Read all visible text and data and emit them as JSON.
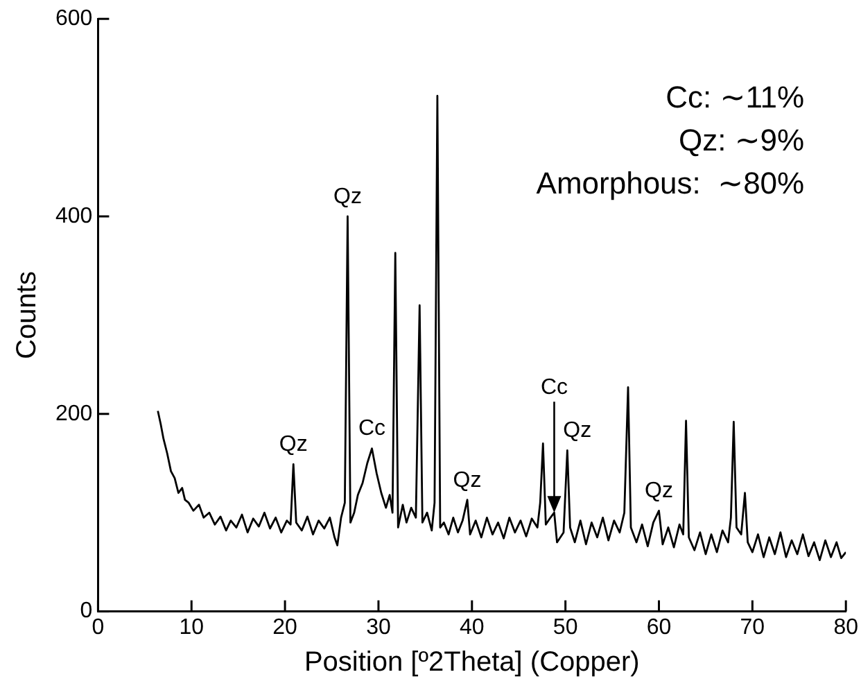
{
  "chart_data": {
    "type": "line",
    "xlabel": "Position [º2Theta] (Copper)",
    "ylabel": "Counts",
    "xlim": [
      0,
      80
    ],
    "xticks": [
      0,
      10,
      20,
      30,
      40,
      50,
      60,
      70,
      80
    ],
    "ylim": [
      0,
      600
    ],
    "yticks": [
      0,
      200,
      400,
      600
    ],
    "grid": false,
    "legend": false,
    "marker": "none",
    "line_style": "solid",
    "series": [
      {
        "color": "#000000",
        "x": [
          6.4,
          6.7,
          7.0,
          7.4,
          7.8,
          8.2,
          8.6,
          9.0,
          9.3,
          9.7,
          10.2,
          10.8,
          11.3,
          11.9,
          12.5,
          13.1,
          13.7,
          14.2,
          14.8,
          15.4,
          16.0,
          16.6,
          17.2,
          17.8,
          18.4,
          19.0,
          19.6,
          20.2,
          20.6,
          20.9,
          21.2,
          21.8,
          22.4,
          23.0,
          23.6,
          24.2,
          24.8,
          25.3,
          25.6,
          26.0,
          26.4,
          26.7,
          27.0,
          27.4,
          27.8,
          28.3,
          28.8,
          29.3,
          29.8,
          30.3,
          30.8,
          31.2,
          31.5,
          31.8,
          32.1,
          32.6,
          33.0,
          33.5,
          34.0,
          34.4,
          34.7,
          35.2,
          35.7,
          36.0,
          36.3,
          36.6,
          37.0,
          37.5,
          38.0,
          38.5,
          39.0,
          39.5,
          39.8,
          40.4,
          41.0,
          41.6,
          42.2,
          42.8,
          43.4,
          44.0,
          44.6,
          45.2,
          45.8,
          46.4,
          47.0,
          47.3,
          47.6,
          47.9,
          48.4,
          48.8,
          49.1,
          49.8,
          50.2,
          50.5,
          51.0,
          51.6,
          52.2,
          52.8,
          53.4,
          54.0,
          54.6,
          55.2,
          55.8,
          56.3,
          56.7,
          57.0,
          57.6,
          58.2,
          58.8,
          59.4,
          60.0,
          60.4,
          61.0,
          61.6,
          62.2,
          62.6,
          62.9,
          63.2,
          63.8,
          64.4,
          65.0,
          65.6,
          66.2,
          66.8,
          67.4,
          67.7,
          68.0,
          68.3,
          68.8,
          69.2,
          69.5,
          70.0,
          70.6,
          71.2,
          71.8,
          72.4,
          73.0,
          73.6,
          74.2,
          74.8,
          75.4,
          76.0,
          76.6,
          77.2,
          77.8,
          78.4,
          79.0,
          79.5,
          80.0
        ],
        "values": [
          203,
          190,
          175,
          160,
          142,
          135,
          120,
          125,
          113,
          110,
          102,
          108,
          95,
          100,
          88,
          96,
          82,
          92,
          85,
          98,
          80,
          94,
          86,
          100,
          84,
          95,
          80,
          92,
          88,
          149,
          90,
          82,
          96,
          78,
          92,
          84,
          95,
          75,
          67,
          95,
          110,
          400,
          90,
          100,
          118,
          130,
          150,
          165,
          140,
          120,
          105,
          118,
          100,
          363,
          85,
          108,
          90,
          105,
          95,
          310,
          90,
          100,
          82,
          110,
          522,
          85,
          90,
          78,
          95,
          80,
          92,
          113,
          78,
          92,
          75,
          95,
          78,
          90,
          74,
          95,
          80,
          92,
          76,
          94,
          85,
          110,
          170,
          88,
          95,
          100,
          70,
          80,
          163,
          85,
          70,
          92,
          68,
          90,
          75,
          95,
          72,
          92,
          80,
          100,
          227,
          85,
          70,
          88,
          66,
          90,
          102,
          68,
          85,
          65,
          88,
          78,
          193,
          75,
          62,
          80,
          58,
          78,
          60,
          82,
          70,
          95,
          192,
          85,
          78,
          120,
          70,
          60,
          78,
          55,
          75,
          58,
          80,
          55,
          72,
          58,
          78,
          56,
          70,
          52,
          72,
          55,
          70,
          54,
          60
        ]
      }
    ],
    "annotations": [
      "Cc: ∼11%",
      "Qz: ∼9%",
      "Amorphous:  ∼80%",
      {
        "text": "Qz",
        "x": 20.9,
        "y": 149
      },
      {
        "text": "Qz",
        "x": 26.7,
        "y": 400
      },
      {
        "text": "Cc",
        "x": 29.3,
        "y": 165
      },
      {
        "text": "Qz",
        "x": 39.5,
        "y": 113
      },
      {
        "text": "Cc",
        "x": 48.8,
        "y": 100
      },
      {
        "text": "Qz",
        "x": 50.2,
        "y": 163
      },
      {
        "text": "Qz",
        "x": 60.0,
        "y": 102
      }
    ]
  }
}
